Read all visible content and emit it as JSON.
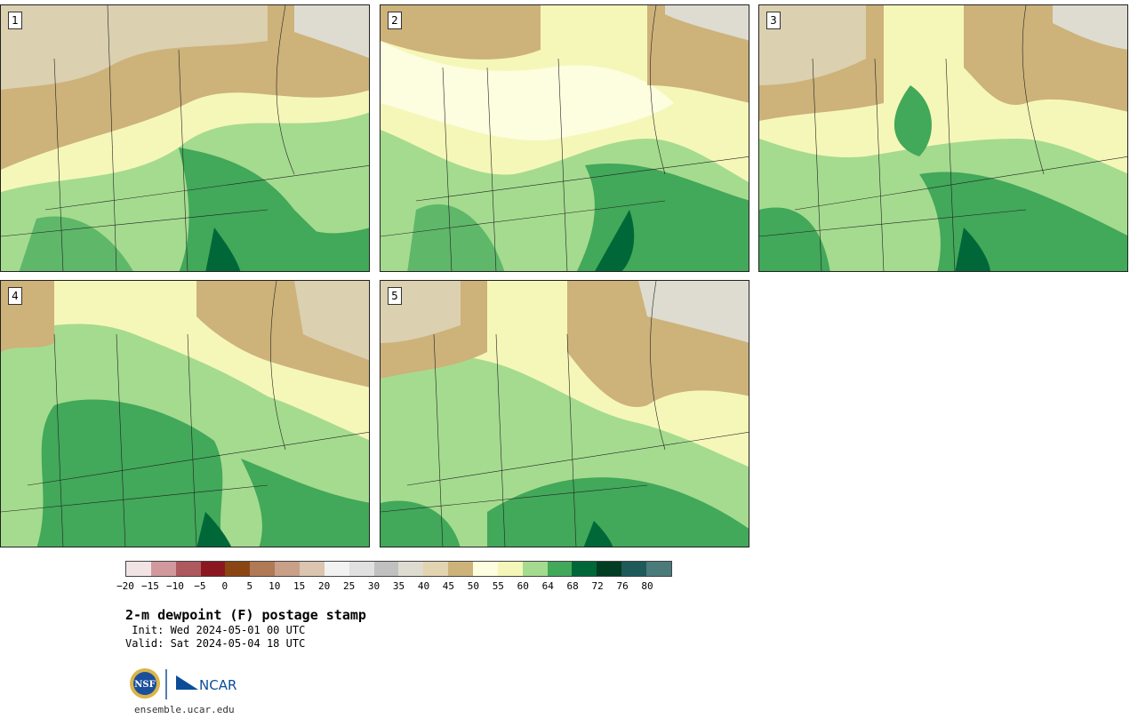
{
  "panels": [
    {
      "label": "1"
    },
    {
      "label": "2"
    },
    {
      "label": "3"
    },
    {
      "label": "4"
    },
    {
      "label": "5"
    }
  ],
  "colorbar": {
    "ticks": [
      "−20",
      "−15",
      "−10",
      "−5",
      "0",
      "5",
      "10",
      "15",
      "20",
      "25",
      "30",
      "35",
      "40",
      "45",
      "50",
      "55",
      "60",
      "64",
      "68",
      "72",
      "76",
      "80"
    ],
    "colors": [
      "#f2e4e4",
      "#d1999c",
      "#ae595e",
      "#8b1820",
      "#8b4513",
      "#b07a55",
      "#c8a088",
      "#dbc4b0",
      "#f2f2f2",
      "#e0e0e0",
      "#c0c0c0",
      "#dedcd0",
      "#e2d4b0",
      "#cdb27a",
      "#fdfde0",
      "#f5f7b8",
      "#a5db8f",
      "#42a85a",
      "#006838",
      "#003d22",
      "#1e5a5a",
      "#4a7a7a"
    ]
  },
  "title": "2-m dewpoint (F) postage stamp",
  "init": " Init: Wed 2024-05-01 00 UTC",
  "valid": "Valid: Sat 2024-05-04 18 UTC",
  "logos": {
    "nsf": "NSF",
    "ncar": "NCAR"
  },
  "site": "ensemble.ucar.edu"
}
